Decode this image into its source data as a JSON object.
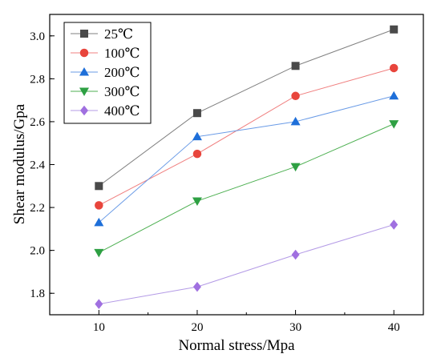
{
  "chart_data": {
    "type": "line",
    "xlabel": "Normal stress/Mpa",
    "ylabel": "Shear modulus/Gpa",
    "x": [
      10,
      20,
      30,
      40
    ],
    "xticks": [
      "10",
      "20",
      "30",
      "40"
    ],
    "yticks": [
      "1.8",
      "2.0",
      "2.2",
      "2.4",
      "2.6",
      "2.8",
      "3.0"
    ],
    "xlim": [
      5,
      43
    ],
    "ylim": [
      1.7,
      3.1
    ],
    "grid": false,
    "legend_position": "top-left",
    "series": [
      {
        "name": "25℃",
        "color": "#808080",
        "marker": "square",
        "marker_color": "#4a4a4a",
        "values": [
          2.3,
          2.64,
          2.86,
          3.03
        ]
      },
      {
        "name": "100℃",
        "color": "#f08080",
        "marker": "circle",
        "marker_color": "#e8453c",
        "values": [
          2.21,
          2.45,
          2.72,
          2.85
        ]
      },
      {
        "name": "200℃",
        "color": "#6a9be6",
        "marker": "triangle-up",
        "marker_color": "#1e6fd9",
        "values": [
          2.13,
          2.53,
          2.6,
          2.72
        ]
      },
      {
        "name": "300℃",
        "color": "#4caf50",
        "marker": "triangle-down",
        "marker_color": "#2ea043",
        "values": [
          1.99,
          2.23,
          2.39,
          2.59
        ]
      },
      {
        "name": "400℃",
        "color": "#b49be6",
        "marker": "diamond",
        "marker_color": "#a070e0",
        "values": [
          1.75,
          1.83,
          1.98,
          2.12
        ]
      }
    ]
  }
}
